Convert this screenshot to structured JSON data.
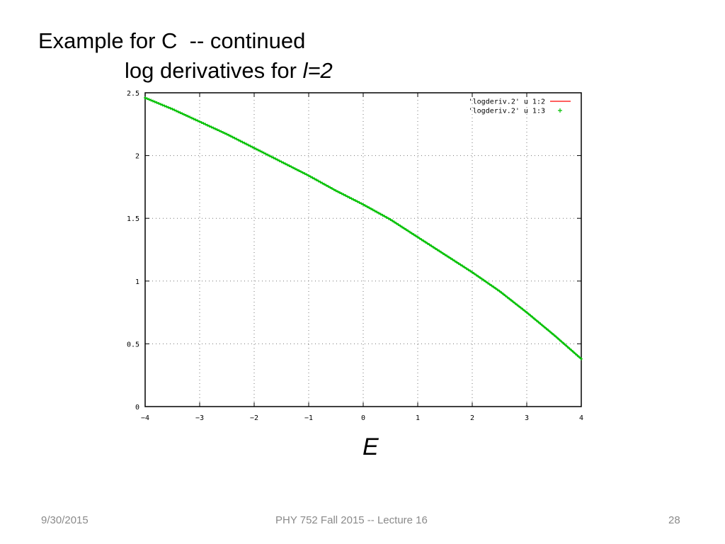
{
  "slide": {
    "title_line1": "Example for C  -- continued",
    "title_line2_prefix": "log derivatives for ",
    "title_line2_var": "l=2",
    "footer_date": "9/30/2015",
    "footer_course": "PHY 752  Fall 2015 -- Lecture 16",
    "footer_page": "28"
  },
  "chart_data": {
    "type": "line",
    "title": "",
    "xlabel": "E",
    "ylabel": "",
    "xlim": [
      -4,
      4
    ],
    "ylim": [
      0,
      2.5
    ],
    "grid": true,
    "legend_placement": "top-right",
    "x_ticks": [
      "-4",
      "-3",
      "-2",
      "-1",
      "0",
      "1",
      "2",
      "3",
      "4"
    ],
    "y_ticks": [
      "0",
      "0.5",
      "1",
      "1.5",
      "2",
      "2.5"
    ],
    "series": [
      {
        "name": "'logderiv.2' u 1:2",
        "style": "line",
        "color": "#ff0000",
        "x": [
          -4,
          -3.5,
          -3,
          -2.5,
          -2,
          -1.5,
          -1,
          -0.5,
          0,
          0.5,
          1,
          1.5,
          2,
          2.5,
          3,
          3.5,
          4
        ],
        "y": [
          2.46,
          2.37,
          2.27,
          2.17,
          2.06,
          1.95,
          1.84,
          1.72,
          1.61,
          1.49,
          1.35,
          1.21,
          1.07,
          0.92,
          0.75,
          0.57,
          0.38
        ]
      },
      {
        "name": "'logderiv.2' u 1:3",
        "style": "points",
        "color": "#00c000",
        "x": [
          -4,
          -3.5,
          -3,
          -2.5,
          -2,
          -1.5,
          -1,
          -0.5,
          0,
          0.5,
          1,
          1.5,
          2,
          2.5,
          3,
          3.5,
          4
        ],
        "y": [
          2.46,
          2.37,
          2.27,
          2.17,
          2.06,
          1.95,
          1.84,
          1.72,
          1.61,
          1.49,
          1.35,
          1.21,
          1.07,
          0.92,
          0.75,
          0.57,
          0.38
        ]
      }
    ]
  }
}
